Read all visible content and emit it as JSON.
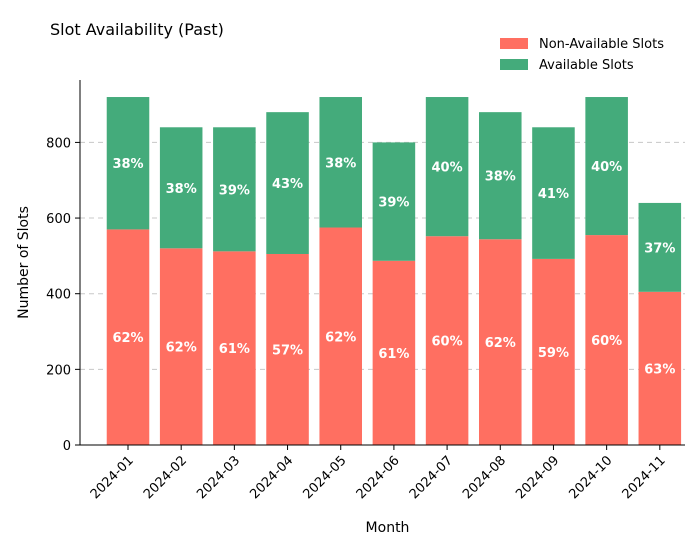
{
  "chart_data": {
    "type": "bar",
    "stacked": true,
    "title": "Slot Availability (Past)",
    "xlabel": "Month",
    "ylabel": "Number of Slots",
    "ylim": [
      0,
      965
    ],
    "yticks": [
      0,
      200,
      400,
      600,
      800
    ],
    "grid": "y-dashed",
    "legend_position": "top-right",
    "categories": [
      "2024-01",
      "2024-02",
      "2024-03",
      "2024-04",
      "2024-05",
      "2024-06",
      "2024-07",
      "2024-08",
      "2024-09",
      "2024-10",
      "2024-11"
    ],
    "series": [
      {
        "name": "Non-Available Slots",
        "color": "#ff6f61",
        "values": [
          570,
          520,
          512,
          505,
          575,
          487,
          552,
          544,
          492,
          555,
          405
        ],
        "labels": [
          "62%",
          "62%",
          "61%",
          "57%",
          "62%",
          "61%",
          "60%",
          "62%",
          "59%",
          "60%",
          "63%"
        ]
      },
      {
        "name": "Available Slots",
        "color": "#44ab7b",
        "values": [
          350,
          320,
          328,
          375,
          345,
          313,
          368,
          336,
          348,
          365,
          235
        ],
        "labels": [
          "38%",
          "38%",
          "39%",
          "43%",
          "38%",
          "39%",
          "40%",
          "38%",
          "41%",
          "40%",
          "37%"
        ]
      }
    ]
  }
}
